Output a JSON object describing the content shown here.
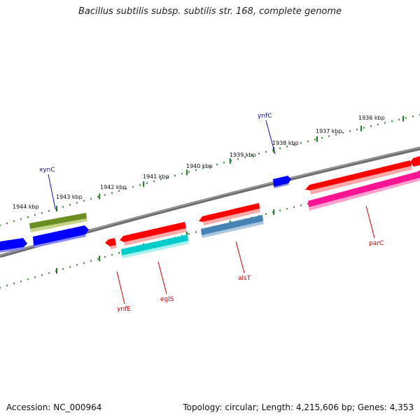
{
  "title": "Bacillus subtilis subsp. subtilis str. 168, complete genome",
  "footer": {
    "accession": "Accession: NC_000964",
    "summary": "Topology: circular; Length: 4,215,606 bp; Genes: 4,353"
  },
  "colors": {
    "backbone": "#7a7a7a",
    "tick": "#1f7a1f",
    "label_blue": "#1010aa",
    "label_red": "#cc0000"
  },
  "ticks": [
    {
      "label": "1936 kbp"
    },
    {
      "label": "1937 kbp"
    },
    {
      "label": "1938 kbp"
    },
    {
      "label": "1939 kbp"
    },
    {
      "label": "1940 kbp"
    },
    {
      "label": "1941 kbp"
    },
    {
      "label": "1942 kbp"
    },
    {
      "label": "1943 kbp"
    },
    {
      "label": "1944 kbp"
    }
  ],
  "genes": [
    {
      "name": "xynC",
      "color": "#6b8e23"
    },
    {
      "name": "ynfC",
      "color": "#0000ff"
    },
    {
      "name": "ynfE",
      "color": "#ff0000"
    },
    {
      "name": "eglS",
      "color": "#00cccc"
    },
    {
      "name": "alsT",
      "color": "#4682b4"
    },
    {
      "name": "parC",
      "color": "#ff1493"
    }
  ]
}
